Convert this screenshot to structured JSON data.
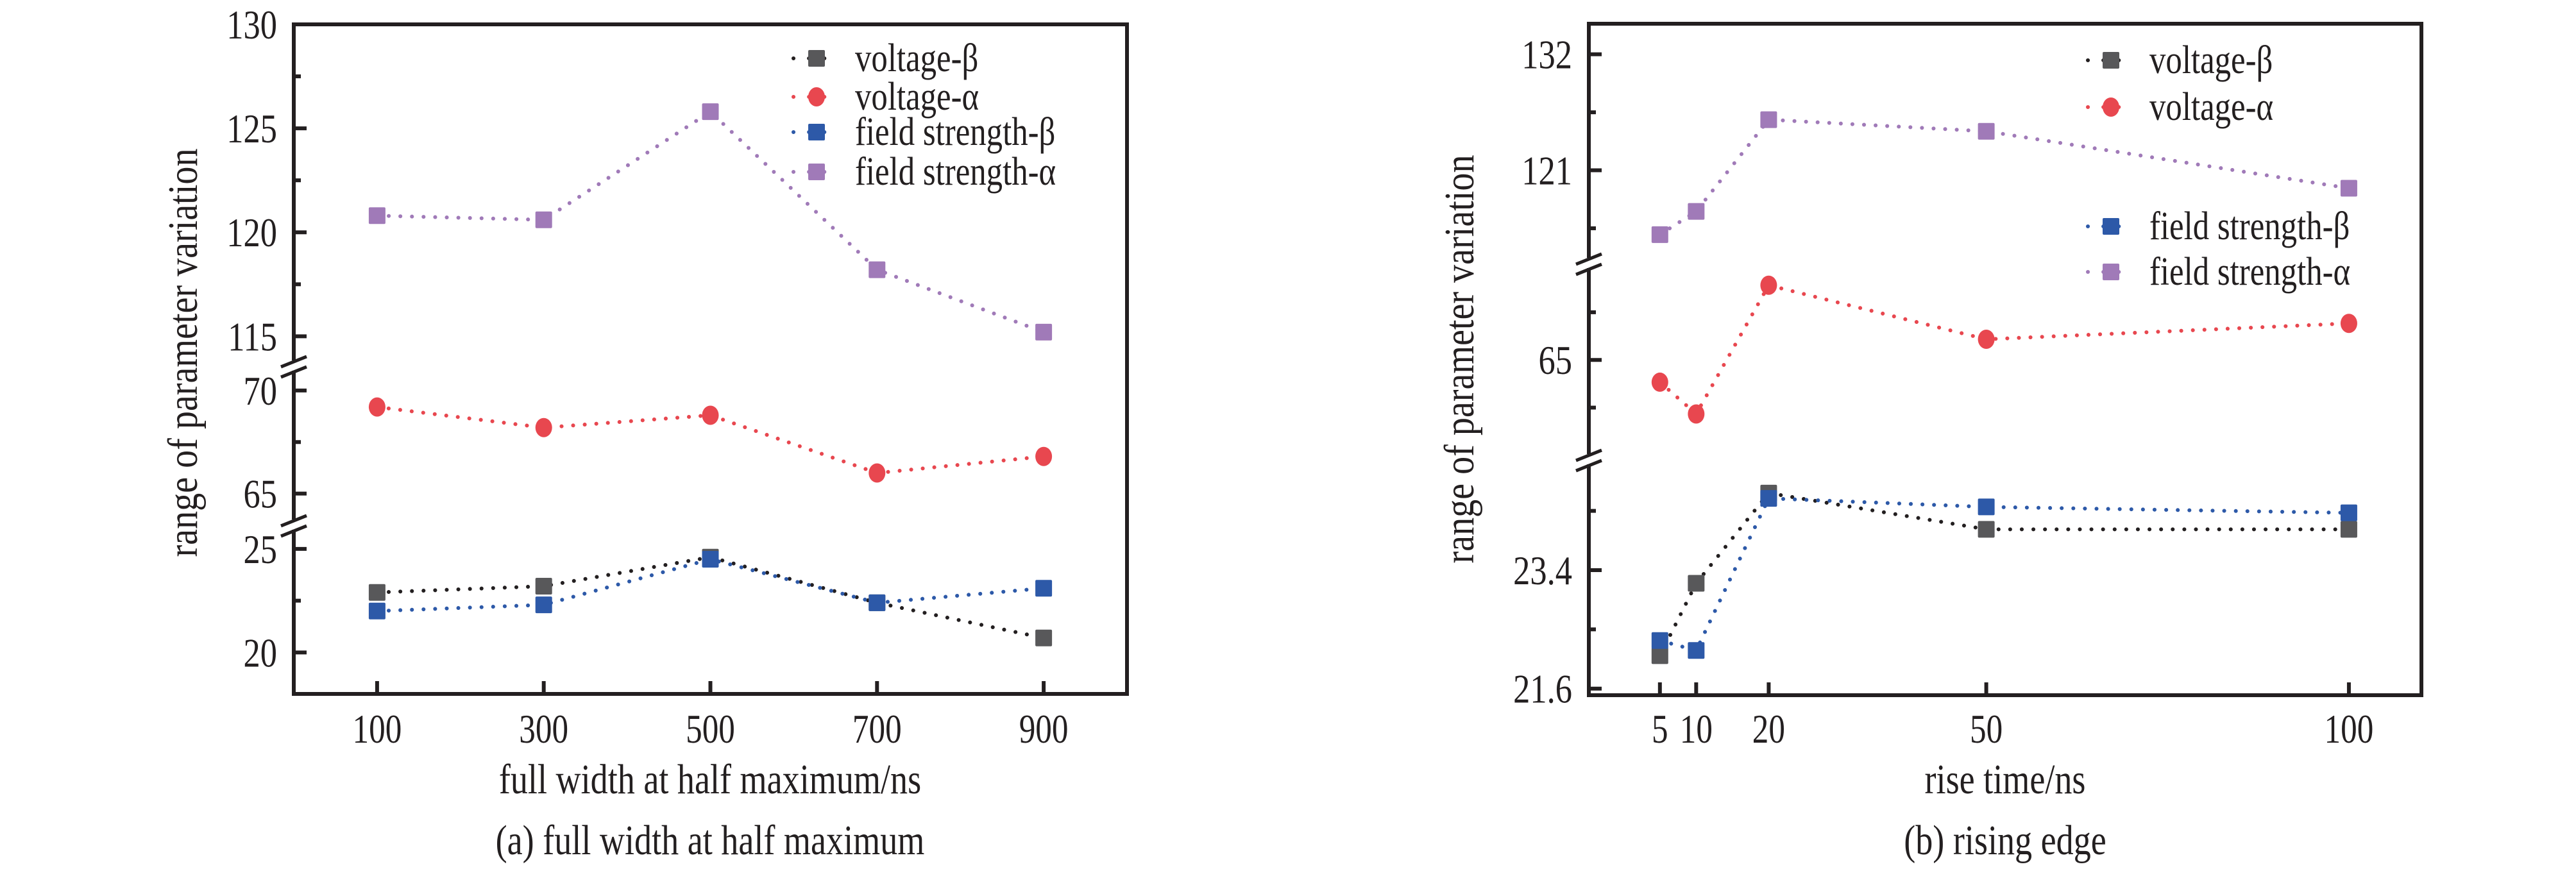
{
  "chart_data": [
    {
      "id": "a",
      "type": "line",
      "title": "",
      "caption": "(a) full width at half maximum",
      "xlabel": "full width at half maximum/ns",
      "ylabel": "range of parameter variation",
      "x": [
        100,
        300,
        500,
        700,
        900
      ],
      "xlim": [
        0,
        1000
      ],
      "x_ticks": [
        100,
        300,
        500,
        700,
        900
      ],
      "y_axis_broken": true,
      "y_segments": [
        {
          "range": [
            18,
            25.8
          ],
          "ticks": [
            20,
            25
          ],
          "minor": [
            22.5
          ]
        },
        {
          "range": [
            63.9,
            70.9
          ],
          "ticks": [
            65,
            70
          ],
          "minor": [
            67.5
          ]
        },
        {
          "range": [
            113.9,
            130
          ],
          "ticks": [
            115,
            120,
            125,
            130
          ],
          "minor": [
            117.5,
            122.5,
            127.5
          ]
        }
      ],
      "grid": false,
      "legend_position": "top-right",
      "series": [
        {
          "name": "voltage-β",
          "marker": "square",
          "color": "#58585a",
          "line_color": "#231f20",
          "segment": 0,
          "values": [
            22.9,
            23.2,
            24.6,
            22.4,
            20.7
          ]
        },
        {
          "name": "voltage-α",
          "marker": "circle",
          "color": "#e8474f",
          "line_color": "#e8474f",
          "segment": 1,
          "values": [
            69.2,
            68.2,
            68.8,
            66.0,
            66.8
          ]
        },
        {
          "name": "field strength-β",
          "marker": "square",
          "color": "#2d59a8",
          "line_color": "#2d59a8",
          "segment": 0,
          "values": [
            22.0,
            22.3,
            24.5,
            22.4,
            23.1
          ]
        },
        {
          "name": "field strength-α",
          "marker": "square",
          "color": "#a07ab8",
          "line_color": "#a07ab8",
          "segment": 2,
          "values": [
            120.8,
            120.6,
            125.8,
            118.2,
            115.2
          ]
        }
      ]
    },
    {
      "id": "b",
      "type": "line",
      "title": "",
      "caption": "(b) rising edge",
      "xlabel": "rise time/ns",
      "ylabel": "range of parameter variation",
      "x": [
        5,
        10,
        20,
        50,
        100
      ],
      "xlim": [
        -4.8,
        110
      ],
      "x_ticks": [
        5,
        10,
        20,
        50,
        100
      ],
      "x_tick_labels": [
        "5",
        "10",
        "20",
        "50",
        "100"
      ],
      "y_axis_broken": true,
      "y_segments": [
        {
          "range": [
            21.5,
            24.9
          ],
          "ticks": [
            21.6,
            23.4
          ],
          "minor": [
            22.5,
            24.3
          ]
        },
        {
          "range": [
            59.4,
            70.7
          ],
          "ticks": [
            65
          ],
          "minor": [
            62,
            68
          ]
        },
        {
          "range": [
            112.7,
            134.9
          ],
          "ticks": [
            121,
            132
          ],
          "minor": [
            115.5,
            126.5
          ]
        }
      ],
      "grid": false,
      "legend_position": "top-right (split around data)",
      "series": [
        {
          "name": "voltage-β",
          "marker": "square",
          "color": "#58585a",
          "line_color": "#231f20",
          "segment": 0,
          "values": [
            22.1,
            23.2,
            24.57,
            24.02,
            24.02
          ]
        },
        {
          "name": "voltage-α",
          "marker": "circle",
          "color": "#e8474f",
          "line_color": "#e8474f",
          "segment": 1,
          "values": [
            63.6,
            61.6,
            69.7,
            66.3,
            67.3
          ]
        },
        {
          "name": "field strength-β",
          "marker": "square",
          "color": "#2d59a8",
          "line_color": "#2d59a8",
          "segment": 0,
          "values": [
            22.33,
            22.18,
            24.49,
            24.36,
            24.27
          ]
        },
        {
          "name": "field strength-α",
          "marker": "square",
          "color": "#a07ab8",
          "line_color": "#a07ab8",
          "segment": 2,
          "values": [
            114.9,
            117.1,
            125.8,
            124.7,
            119.3
          ]
        }
      ]
    }
  ]
}
